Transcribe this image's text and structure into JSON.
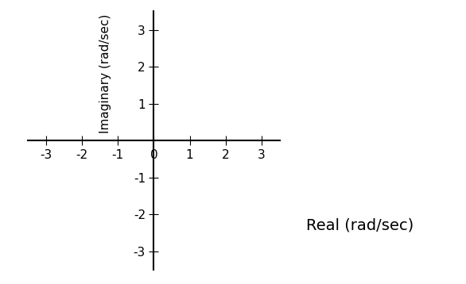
{
  "chart_data": {
    "type": "scatter",
    "x": [],
    "values": [],
    "x_label": "Real (rad/sec)",
    "y_label": "Imaginary (rad/sec)",
    "xlim": [
      -3.5,
      3.5
    ],
    "ylim": [
      -3.5,
      3.5
    ],
    "xticks": [
      -3,
      -2,
      -1,
      0,
      1,
      2,
      3
    ],
    "yticks": [
      -3,
      -2,
      -1,
      1,
      2,
      3
    ],
    "grid": false,
    "color": "#000000"
  }
}
